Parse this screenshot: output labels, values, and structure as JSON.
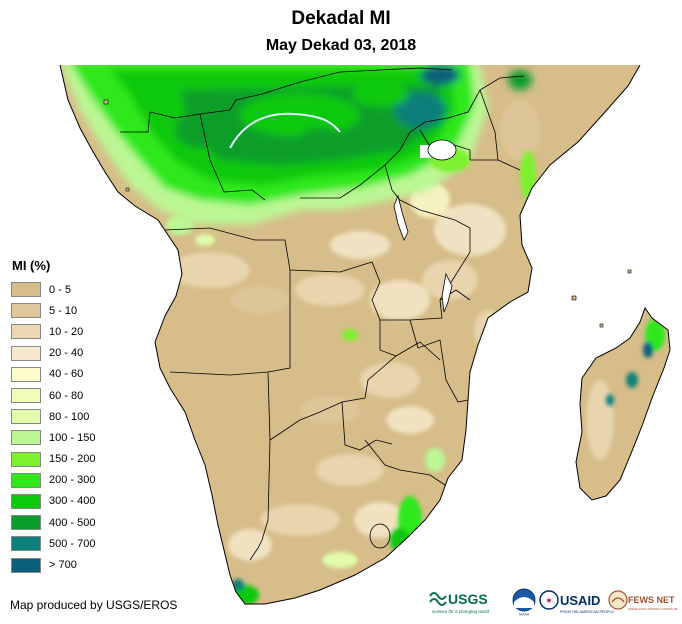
{
  "title": "Dekadal MI",
  "subtitle": "May Dekad 03, 2018",
  "legend": {
    "title": "MI (%)",
    "items": [
      {
        "label": "0 - 5",
        "color": "#d6bd89"
      },
      {
        "label": "5 - 10",
        "color": "#e0c89c"
      },
      {
        "label": "10 - 20",
        "color": "#ecd9b4"
      },
      {
        "label": "20 - 40",
        "color": "#f5e8cc"
      },
      {
        "label": "40 - 60",
        "color": "#fdfccc"
      },
      {
        "label": "60 - 80",
        "color": "#f2fcb8"
      },
      {
        "label": "80 - 100",
        "color": "#e0fcaa"
      },
      {
        "label": "100 - 150",
        "color": "#bcf794"
      },
      {
        "label": "150 - 200",
        "color": "#7cf22f"
      },
      {
        "label": "200 - 300",
        "color": "#2ee81a"
      },
      {
        "label": "300 - 400",
        "color": "#0bc90b"
      },
      {
        "label": "400 - 500",
        "color": "#089e2c"
      },
      {
        "label": "500 - 700",
        "color": "#0d7f7a"
      },
      {
        "label": "> 700",
        "color": "#0b5f7a"
      }
    ]
  },
  "credit": "Map produced by USGS/EROS",
  "logos": {
    "usgs": "USGS",
    "usgs_tagline": "science for a changing world",
    "noaa": "NOAA",
    "usaid": "USAID",
    "usaid_tagline": "FROM THE AMERICAN PEOPLE",
    "fewsnet": "FEWS NET",
    "fewsnet_tagline": "FAMINE EARLY WARNING SYSTEMS NETWORK"
  }
}
